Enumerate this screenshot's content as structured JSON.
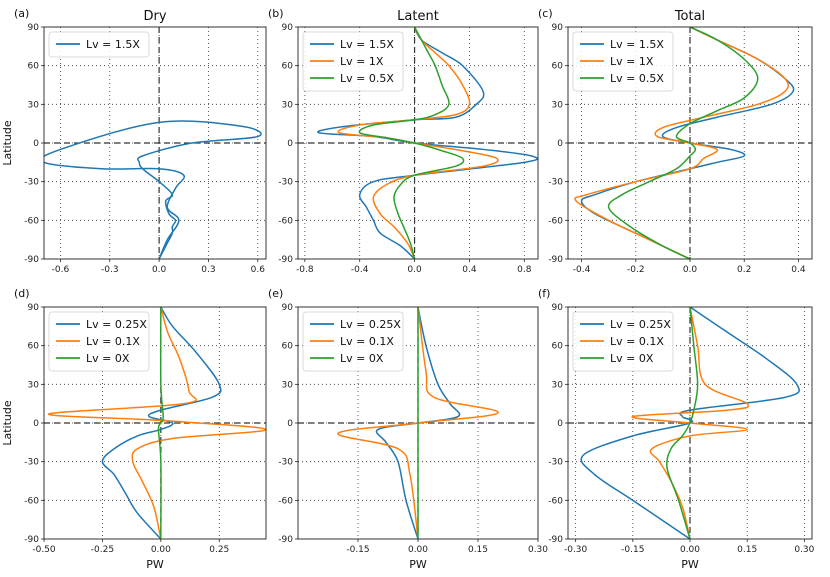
{
  "chart_data": [
    {
      "type": "line",
      "panel_label": "(a)",
      "title": "Dry",
      "xlabel": "",
      "ylabel": "Latitude",
      "xlim": [
        -0.7,
        0.65
      ],
      "ylim": [
        -90,
        90
      ],
      "xticks": [
        -0.6,
        -0.3,
        0.0,
        0.3,
        0.6
      ],
      "xtick_labels": [
        "-0.6",
        "-0.3",
        "0.0",
        "0.3",
        "0.6"
      ],
      "yticks": [
        -90,
        -60,
        -30,
        0,
        30,
        60,
        90
      ],
      "ytick_labels": [
        "-90",
        "-60",
        "-30",
        "0",
        "30",
        "60",
        "90"
      ],
      "grid": "dotted",
      "legend_position": "top-left",
      "series": [
        {
          "name": "Lv = 1.5X",
          "color": "#1f77b4",
          "x": [
            0.0,
            0.04,
            0.08,
            0.08,
            0.1,
            0.06,
            0.04,
            0.08,
            0.0,
            -0.1,
            -0.12,
            -0.1,
            0.2,
            0.6,
            0.5,
            0.0,
            -0.6,
            -0.7,
            -0.35,
            0.0,
            0.15,
            0.1,
            0.05,
            0.12,
            0.05,
            0.0
          ],
          "y": [
            -90,
            -80,
            -70,
            -65,
            -60,
            -55,
            -45,
            -40,
            -30,
            -20,
            -15,
            -10,
            0,
            5,
            13,
            16,
            -5,
            -15,
            -20,
            -20,
            -25,
            -35,
            -50,
            -60,
            -75,
            -90
          ]
        }
      ]
    },
    {
      "type": "line",
      "panel_label": "(b)",
      "title": "Latent",
      "xlabel": "",
      "ylabel": "",
      "xlim": [
        -0.85,
        0.9
      ],
      "ylim": [
        -90,
        90
      ],
      "xticks": [
        -0.8,
        -0.4,
        0.0,
        0.4,
        0.8
      ],
      "xtick_labels": [
        "-0.8",
        "-0.4",
        "0.0",
        "0.4",
        "0.8"
      ],
      "yticks": [
        -90,
        -60,
        -30,
        0,
        30,
        60,
        90
      ],
      "ytick_labels": [
        "-90",
        "-60",
        "-30",
        "0",
        "30",
        "60",
        "90"
      ],
      "grid": "dotted",
      "legend_position": "top-left",
      "series": [
        {
          "name": "Lv = 1.5X",
          "color": "#1f77b4",
          "x": [
            0.0,
            0.05,
            0.2,
            0.35,
            0.5,
            0.45,
            0.3,
            0.0,
            -0.5,
            -0.7,
            -0.3,
            0.0,
            0.5,
            0.85,
            0.8,
            0.0,
            -0.3,
            -0.4,
            -0.35,
            -0.3,
            -0.25,
            -0.1,
            0.0
          ],
          "y": [
            90,
            80,
            70,
            60,
            40,
            30,
            20,
            18,
            13,
            8,
            5,
            0,
            -5,
            -10,
            -15,
            -25,
            -30,
            -40,
            -50,
            -60,
            -70,
            -80,
            -90
          ]
        },
        {
          "name": "Lv = 1X",
          "color": "#ff7f0e",
          "x": [
            0.0,
            0.05,
            0.15,
            0.25,
            0.35,
            0.4,
            0.3,
            0.0,
            -0.4,
            -0.55,
            -0.2,
            0.0,
            0.35,
            0.6,
            0.5,
            0.0,
            -0.2,
            -0.3,
            -0.25,
            -0.15,
            -0.05,
            0.0
          ],
          "y": [
            90,
            80,
            70,
            60,
            45,
            30,
            22,
            18,
            14,
            8,
            4,
            0,
            -6,
            -12,
            -18,
            -25,
            -32,
            -42,
            -55,
            -65,
            -78,
            -90
          ]
        },
        {
          "name": "Lv = 0.5X",
          "color": "#2ca02c",
          "x": [
            0.0,
            0.05,
            0.1,
            0.15,
            0.2,
            0.25,
            0.15,
            0.0,
            -0.3,
            -0.4,
            -0.2,
            0.0,
            0.2,
            0.35,
            0.3,
            0.0,
            -0.1,
            -0.15,
            -0.12,
            -0.08,
            -0.03,
            0.0
          ],
          "y": [
            90,
            80,
            70,
            60,
            45,
            30,
            22,
            18,
            14,
            8,
            4,
            0,
            -6,
            -12,
            -18,
            -25,
            -32,
            -42,
            -55,
            -65,
            -78,
            -90
          ]
        }
      ]
    },
    {
      "type": "line",
      "panel_label": "(c)",
      "title": "Total",
      "xlabel": "",
      "ylabel": "",
      "xlim": [
        -0.45,
        0.45
      ],
      "ylim": [
        -90,
        90
      ],
      "xticks": [
        -0.4,
        -0.2,
        0.0,
        0.2,
        0.4
      ],
      "xtick_labels": [
        "-0.4",
        "-0.2",
        "0.0",
        "0.2",
        "0.4"
      ],
      "yticks": [
        -90,
        -60,
        -30,
        0,
        30,
        60,
        90
      ],
      "ytick_labels": [
        "-90",
        "-60",
        "-30",
        "0",
        "30",
        "60",
        "90"
      ],
      "grid": "dotted",
      "legend_position": "top-left",
      "series": [
        {
          "name": "Lv = 1.5X",
          "color": "#1f77b4",
          "x": [
            0.0,
            0.1,
            0.25,
            0.35,
            0.38,
            0.3,
            0.1,
            -0.05,
            -0.1,
            0.0,
            0.15,
            0.2,
            0.1,
            0.0,
            -0.2,
            -0.35,
            -0.4,
            -0.35,
            -0.2,
            -0.1,
            0.0
          ],
          "y": [
            90,
            80,
            65,
            50,
            40,
            30,
            20,
            12,
            5,
            0,
            -5,
            -10,
            -15,
            -20,
            -30,
            -40,
            -45,
            -55,
            -70,
            -80,
            -90
          ]
        },
        {
          "name": "Lv = 1X",
          "color": "#ff7f0e",
          "x": [
            0.0,
            0.1,
            0.25,
            0.35,
            0.35,
            0.25,
            0.05,
            -0.1,
            -0.12,
            0.0,
            0.1,
            0.05,
            0.0,
            -0.2,
            -0.38,
            -0.42,
            -0.3,
            -0.15,
            -0.05,
            0.0
          ],
          "y": [
            90,
            80,
            65,
            50,
            40,
            30,
            20,
            12,
            5,
            0,
            -5,
            -12,
            -20,
            -30,
            -40,
            -45,
            -60,
            -75,
            -85,
            -90
          ]
        },
        {
          "name": "Lv = 0.5X",
          "color": "#2ca02c",
          "x": [
            0.0,
            0.1,
            0.2,
            0.25,
            0.2,
            0.1,
            0.0,
            -0.05,
            0.0,
            0.02,
            0.0,
            -0.05,
            -0.15,
            -0.25,
            -0.3,
            -0.22,
            -0.1,
            0.0
          ],
          "y": [
            90,
            80,
            65,
            50,
            35,
            25,
            15,
            5,
            0,
            -5,
            -10,
            -20,
            -30,
            -40,
            -50,
            -65,
            -80,
            -90
          ]
        }
      ]
    },
    {
      "type": "line",
      "panel_label": "(d)",
      "title": "",
      "xlabel": "PW",
      "ylabel": "Latitude",
      "xlim": [
        -0.5,
        0.45
      ],
      "ylim": [
        -90,
        90
      ],
      "xticks": [
        -0.5,
        -0.25,
        0.0,
        0.25
      ],
      "xtick_labels": [
        "-0.50",
        "-0.25",
        "0.00",
        "0.25"
      ],
      "yticks": [
        -90,
        -60,
        -30,
        0,
        30,
        60,
        90
      ],
      "ytick_labels": [
        "-90",
        "-60",
        "-30",
        "0",
        "30",
        "60",
        "90"
      ],
      "grid": "dotted",
      "legend_position": "top-left",
      "series": [
        {
          "name": "Lv = 0.25X",
          "color": "#1f77b4",
          "x": [
            0.0,
            0.05,
            0.15,
            0.25,
            0.22,
            0.0,
            -0.05,
            0.05,
            0.0,
            -0.1,
            -0.2,
            -0.25,
            -0.2,
            -0.15,
            -0.1,
            0.0
          ],
          "y": [
            90,
            75,
            55,
            30,
            20,
            10,
            5,
            0,
            -5,
            -10,
            -20,
            -30,
            -40,
            -55,
            -70,
            -90
          ]
        },
        {
          "name": "Lv = 0.1X",
          "color": "#ff7f0e",
          "x": [
            0.0,
            0.03,
            0.08,
            0.12,
            0.1,
            -0.48,
            0.0,
            0.45,
            0.05,
            -0.1,
            -0.12,
            -0.08,
            -0.03,
            0.0
          ],
          "y": [
            90,
            70,
            50,
            25,
            15,
            7,
            2,
            -5,
            -12,
            -20,
            -30,
            -45,
            -65,
            -90
          ]
        },
        {
          "name": "Lv = 0X",
          "color": "#2ca02c",
          "x": [
            0.0,
            0.0,
            0.01,
            0.0,
            -0.01,
            0.0,
            0.0
          ],
          "y": [
            90,
            30,
            5,
            0,
            -5,
            -30,
            -90
          ]
        }
      ]
    },
    {
      "type": "line",
      "panel_label": "(e)",
      "title": "",
      "xlabel": "PW",
      "ylabel": "",
      "xlim": [
        -0.3,
        0.3
      ],
      "ylim": [
        -90,
        90
      ],
      "xticks": [
        -0.15,
        0.0,
        0.15,
        0.3
      ],
      "xtick_labels": [
        "-0.15",
        "0.00",
        "0.15",
        "0.30"
      ],
      "yticks": [
        -90,
        -60,
        -30,
        0,
        30,
        60,
        90
      ],
      "ytick_labels": [
        "-90",
        "-60",
        "-30",
        "0",
        "30",
        "60",
        "90"
      ],
      "grid": "dotted",
      "legend_position": "top-left",
      "series": [
        {
          "name": "Lv = 0.25X",
          "color": "#1f77b4",
          "x": [
            0.0,
            0.02,
            0.05,
            0.08,
            0.1,
            0.0,
            -0.1,
            -0.08,
            -0.05,
            -0.03,
            0.0
          ],
          "y": [
            90,
            60,
            30,
            15,
            5,
            0,
            -5,
            -15,
            -30,
            -60,
            -90
          ]
        },
        {
          "name": "Lv = 0.1X",
          "color": "#ff7f0e",
          "x": [
            0.0,
            0.02,
            0.04,
            0.2,
            0.0,
            -0.2,
            -0.05,
            -0.02,
            0.0
          ],
          "y": [
            90,
            40,
            20,
            8,
            0,
            -8,
            -20,
            -40,
            -90
          ]
        },
        {
          "name": "Lv = 0X",
          "color": "#2ca02c",
          "x": [
            0.0,
            0.0
          ],
          "y": [
            90,
            -90
          ]
        }
      ]
    },
    {
      "type": "line",
      "panel_label": "(f)",
      "title": "",
      "xlabel": "PW",
      "ylabel": "",
      "xlim": [
        -0.32,
        0.32
      ],
      "ylim": [
        -90,
        90
      ],
      "xticks": [
        -0.3,
        -0.15,
        0.0,
        0.15,
        0.3
      ],
      "xtick_labels": [
        "-0.30",
        "-0.15",
        "0.00",
        "0.15",
        "0.30"
      ],
      "yticks": [
        -90,
        -60,
        -30,
        0,
        30,
        60,
        90
      ],
      "ytick_labels": [
        "-90",
        "-60",
        "-30",
        "0",
        "30",
        "60",
        "90"
      ],
      "grid": "dotted",
      "legend_position": "top-left",
      "series": [
        {
          "name": "Lv = 0.25X",
          "color": "#1f77b4",
          "x": [
            0.0,
            0.1,
            0.2,
            0.28,
            0.25,
            0.0,
            -0.02,
            0.0,
            -0.15,
            -0.28,
            -0.25,
            -0.15,
            -0.05,
            0.0
          ],
          "y": [
            90,
            70,
            50,
            30,
            20,
            10,
            5,
            0,
            -10,
            -25,
            -40,
            -60,
            -80,
            -90
          ]
        },
        {
          "name": "Lv = 0.1X",
          "color": "#ff7f0e",
          "x": [
            0.0,
            0.02,
            0.04,
            0.15,
            0.1,
            -0.15,
            0.0,
            0.15,
            0.0,
            -0.1,
            -0.08,
            -0.05,
            -0.02,
            0.0
          ],
          "y": [
            90,
            60,
            30,
            15,
            10,
            5,
            0,
            -5,
            -10,
            -20,
            -30,
            -45,
            -65,
            -90
          ]
        },
        {
          "name": "Lv = 0X",
          "color": "#2ca02c",
          "x": [
            0.0,
            0.01,
            0.02,
            0.01,
            0.0,
            -0.02,
            -0.05,
            -0.06,
            -0.03,
            0.0
          ],
          "y": [
            90,
            60,
            30,
            10,
            0,
            -10,
            -20,
            -35,
            -60,
            -90
          ]
        }
      ]
    }
  ]
}
